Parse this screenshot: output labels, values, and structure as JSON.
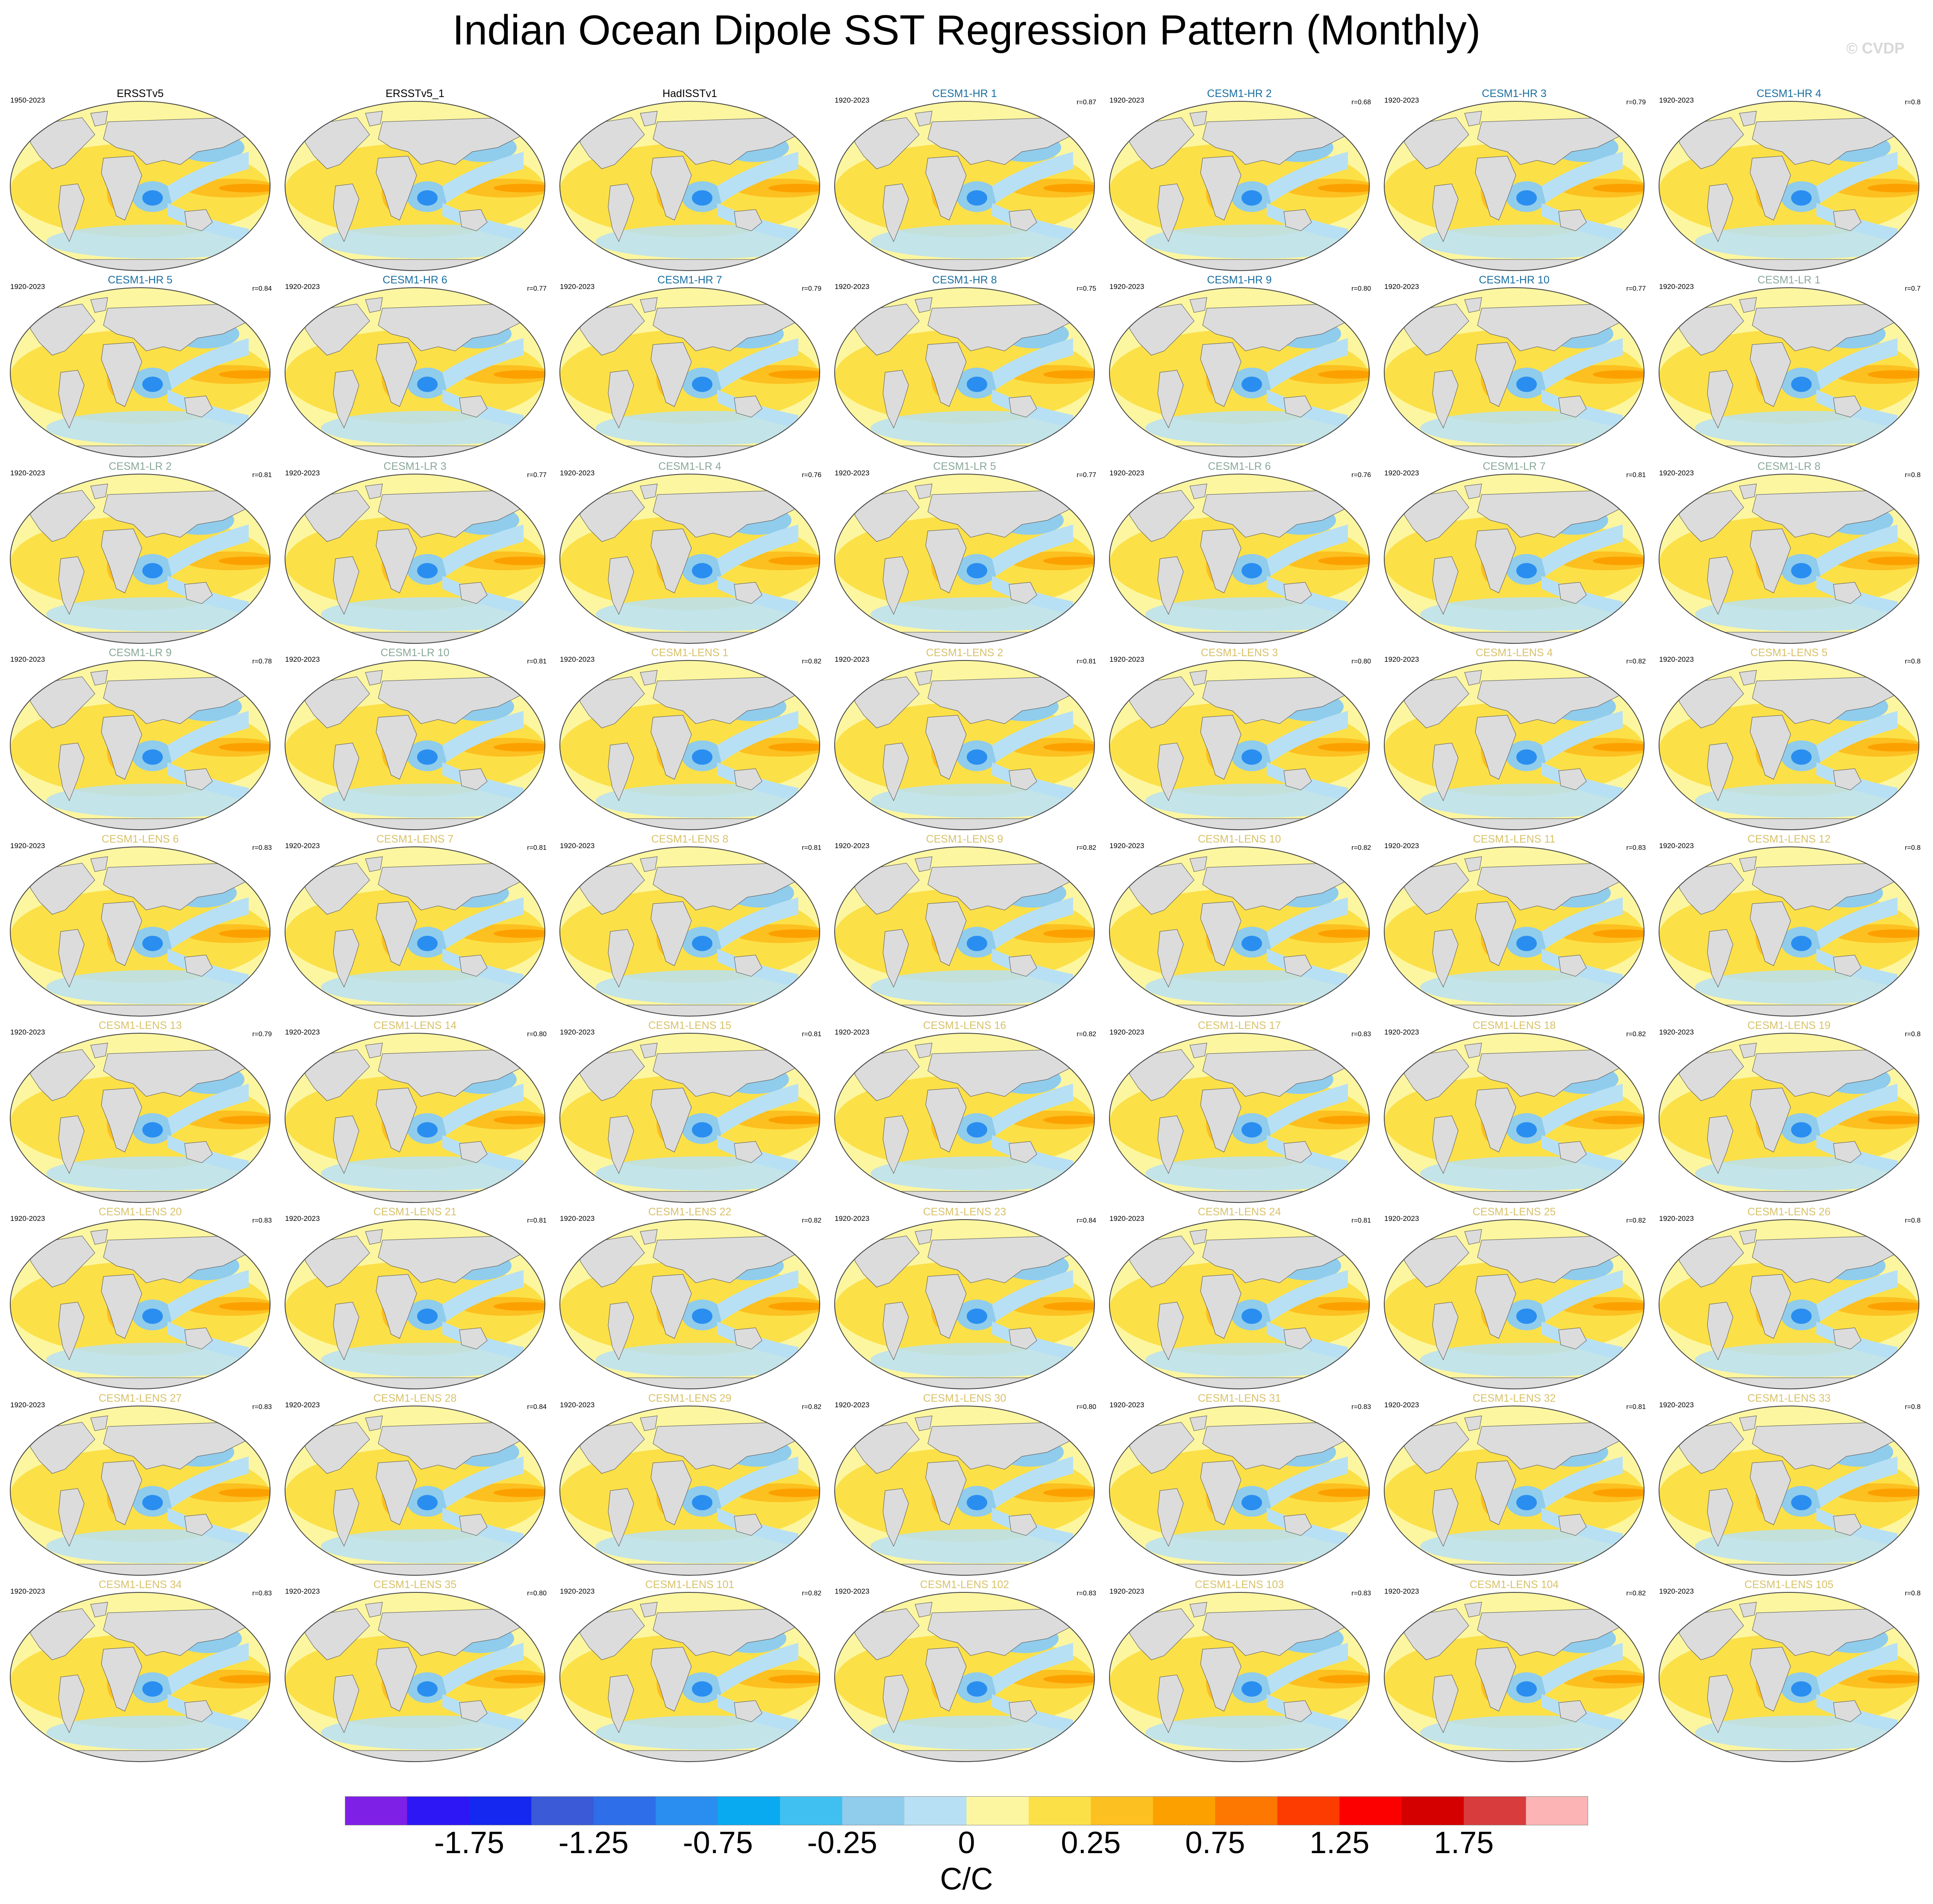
{
  "title": "Indian Ocean Dipole SST Regression Pattern (Monthly)",
  "credit": "© CVDP",
  "colors": {
    "obs_title": "#000000",
    "hr_title": "#1a6fa0",
    "lr_title": "#8aa89a",
    "lens_title": "#d8c26a"
  },
  "chart_data": {
    "type": "heatmap",
    "layout": "small-multiples",
    "projection": "Robinson",
    "panels": [
      {
        "title": "ERSSTv5",
        "group": "obs",
        "years": "1950-2023",
        "corr": ""
      },
      {
        "title": "ERSSTv5_1",
        "group": "obs",
        "years": "",
        "corr": ""
      },
      {
        "title": "HadISSTv1",
        "group": "obs",
        "years": "",
        "corr": ""
      },
      {
        "title": "CESM1-HR 1",
        "group": "hr",
        "years": "1920-2023",
        "corr": "r=0.87"
      },
      {
        "title": "CESM1-HR 2",
        "group": "hr",
        "years": "1920-2023",
        "corr": "r=0.68"
      },
      {
        "title": "CESM1-HR 3",
        "group": "hr",
        "years": "1920-2023",
        "corr": "r=0.79"
      },
      {
        "title": "CESM1-HR 4",
        "group": "hr",
        "years": "1920-2023",
        "corr": "r=0.8"
      },
      {
        "title": "CESM1-HR 5",
        "group": "hr",
        "years": "1920-2023",
        "corr": "r=0.84"
      },
      {
        "title": "CESM1-HR 6",
        "group": "hr",
        "years": "1920-2023",
        "corr": "r=0.77"
      },
      {
        "title": "CESM1-HR 7",
        "group": "hr",
        "years": "1920-2023",
        "corr": "r=0.79"
      },
      {
        "title": "CESM1-HR 8",
        "group": "hr",
        "years": "1920-2023",
        "corr": "r=0.75"
      },
      {
        "title": "CESM1-HR 9",
        "group": "hr",
        "years": "1920-2023",
        "corr": "r=0.80"
      },
      {
        "title": "CESM1-HR 10",
        "group": "hr",
        "years": "1920-2023",
        "corr": "r=0.77"
      },
      {
        "title": "CESM1-LR 1",
        "group": "lr",
        "years": "1920-2023",
        "corr": "r=0.7"
      },
      {
        "title": "CESM1-LR 2",
        "group": "lr",
        "years": "1920-2023",
        "corr": "r=0.81"
      },
      {
        "title": "CESM1-LR 3",
        "group": "lr",
        "years": "1920-2023",
        "corr": "r=0.77"
      },
      {
        "title": "CESM1-LR 4",
        "group": "lr",
        "years": "1920-2023",
        "corr": "r=0.76"
      },
      {
        "title": "CESM1-LR 5",
        "group": "lr",
        "years": "1920-2023",
        "corr": "r=0.77"
      },
      {
        "title": "CESM1-LR 6",
        "group": "lr",
        "years": "1920-2023",
        "corr": "r=0.76"
      },
      {
        "title": "CESM1-LR 7",
        "group": "lr",
        "years": "1920-2023",
        "corr": "r=0.81"
      },
      {
        "title": "CESM1-LR 8",
        "group": "lr",
        "years": "1920-2023",
        "corr": "r=0.8"
      },
      {
        "title": "CESM1-LR 9",
        "group": "lr",
        "years": "1920-2023",
        "corr": "r=0.78"
      },
      {
        "title": "CESM1-LR 10",
        "group": "lr",
        "years": "1920-2023",
        "corr": "r=0.81"
      },
      {
        "title": "CESM1-LENS 1",
        "group": "lens",
        "years": "1920-2023",
        "corr": "r=0.82"
      },
      {
        "title": "CESM1-LENS 2",
        "group": "lens",
        "years": "1920-2023",
        "corr": "r=0.81"
      },
      {
        "title": "CESM1-LENS 3",
        "group": "lens",
        "years": "1920-2023",
        "corr": "r=0.80"
      },
      {
        "title": "CESM1-LENS 4",
        "group": "lens",
        "years": "1920-2023",
        "corr": "r=0.82"
      },
      {
        "title": "CESM1-LENS 5",
        "group": "lens",
        "years": "1920-2023",
        "corr": "r=0.8"
      },
      {
        "title": "CESM1-LENS 6",
        "group": "lens",
        "years": "1920-2023",
        "corr": "r=0.83"
      },
      {
        "title": "CESM1-LENS 7",
        "group": "lens",
        "years": "1920-2023",
        "corr": "r=0.81"
      },
      {
        "title": "CESM1-LENS 8",
        "group": "lens",
        "years": "1920-2023",
        "corr": "r=0.81"
      },
      {
        "title": "CESM1-LENS 9",
        "group": "lens",
        "years": "1920-2023",
        "corr": "r=0.82"
      },
      {
        "title": "CESM1-LENS 10",
        "group": "lens",
        "years": "1920-2023",
        "corr": "r=0.82"
      },
      {
        "title": "CESM1-LENS 11",
        "group": "lens",
        "years": "1920-2023",
        "corr": "r=0.83"
      },
      {
        "title": "CESM1-LENS 12",
        "group": "lens",
        "years": "1920-2023",
        "corr": "r=0.8"
      },
      {
        "title": "CESM1-LENS 13",
        "group": "lens",
        "years": "1920-2023",
        "corr": "r=0.79"
      },
      {
        "title": "CESM1-LENS 14",
        "group": "lens",
        "years": "1920-2023",
        "corr": "r=0.80"
      },
      {
        "title": "CESM1-LENS 15",
        "group": "lens",
        "years": "1920-2023",
        "corr": "r=0.81"
      },
      {
        "title": "CESM1-LENS 16",
        "group": "lens",
        "years": "1920-2023",
        "corr": "r=0.82"
      },
      {
        "title": "CESM1-LENS 17",
        "group": "lens",
        "years": "1920-2023",
        "corr": "r=0.83"
      },
      {
        "title": "CESM1-LENS 18",
        "group": "lens",
        "years": "1920-2023",
        "corr": "r=0.82"
      },
      {
        "title": "CESM1-LENS 19",
        "group": "lens",
        "years": "1920-2023",
        "corr": "r=0.8"
      },
      {
        "title": "CESM1-LENS 20",
        "group": "lens",
        "years": "1920-2023",
        "corr": "r=0.83"
      },
      {
        "title": "CESM1-LENS 21",
        "group": "lens",
        "years": "1920-2023",
        "corr": "r=0.81"
      },
      {
        "title": "CESM1-LENS 22",
        "group": "lens",
        "years": "1920-2023",
        "corr": "r=0.82"
      },
      {
        "title": "CESM1-LENS 23",
        "group": "lens",
        "years": "1920-2023",
        "corr": "r=0.84"
      },
      {
        "title": "CESM1-LENS 24",
        "group": "lens",
        "years": "1920-2023",
        "corr": "r=0.81"
      },
      {
        "title": "CESM1-LENS 25",
        "group": "lens",
        "years": "1920-2023",
        "corr": "r=0.82"
      },
      {
        "title": "CESM1-LENS 26",
        "group": "lens",
        "years": "1920-2023",
        "corr": "r=0.8"
      },
      {
        "title": "CESM1-LENS 27",
        "group": "lens",
        "years": "1920-2023",
        "corr": "r=0.83"
      },
      {
        "title": "CESM1-LENS 28",
        "group": "lens",
        "years": "1920-2023",
        "corr": "r=0.84"
      },
      {
        "title": "CESM1-LENS 29",
        "group": "lens",
        "years": "1920-2023",
        "corr": "r=0.82"
      },
      {
        "title": "CESM1-LENS 30",
        "group": "lens",
        "years": "1920-2023",
        "corr": "r=0.80"
      },
      {
        "title": "CESM1-LENS 31",
        "group": "lens",
        "years": "1920-2023",
        "corr": "r=0.83"
      },
      {
        "title": "CESM1-LENS 32",
        "group": "lens",
        "years": "1920-2023",
        "corr": "r=0.81"
      },
      {
        "title": "CESM1-LENS 33",
        "group": "lens",
        "years": "1920-2023",
        "corr": "r=0.8"
      },
      {
        "title": "CESM1-LENS 34",
        "group": "lens",
        "years": "1920-2023",
        "corr": "r=0.83"
      },
      {
        "title": "CESM1-LENS 35",
        "group": "lens",
        "years": "1920-2023",
        "corr": "r=0.80"
      },
      {
        "title": "CESM1-LENS 101",
        "group": "lens",
        "years": "1920-2023",
        "corr": "r=0.82"
      },
      {
        "title": "CESM1-LENS 102",
        "group": "lens",
        "years": "1920-2023",
        "corr": "r=0.83"
      },
      {
        "title": "CESM1-LENS 103",
        "group": "lens",
        "years": "1920-2023",
        "corr": "r=0.83"
      },
      {
        "title": "CESM1-LENS 104",
        "group": "lens",
        "years": "1920-2023",
        "corr": "r=0.82"
      },
      {
        "title": "CESM1-LENS 105",
        "group": "lens",
        "years": "1920-2023",
        "corr": "r=0.8"
      }
    ],
    "colorbar": {
      "unit": "C/C",
      "colors": [
        "#7f20e6",
        "#2e17f5",
        "#1428f0",
        "#3a5ad8",
        "#2e6ee8",
        "#2a8ef0",
        "#0aaaf0",
        "#40c0f0",
        "#90ccec",
        "#b8e0f4",
        "#fcf6a0",
        "#fce048",
        "#fcc020",
        "#fca000",
        "#fc7800",
        "#fc3c00",
        "#fc0000",
        "#d40000",
        "#d83c3c",
        "#fcb4b4"
      ],
      "tick_labels": [
        "-1.75",
        "-1.25",
        "-0.75",
        "-0.25",
        "0",
        "0.25",
        "0.75",
        "1.25",
        "1.75"
      ]
    }
  }
}
